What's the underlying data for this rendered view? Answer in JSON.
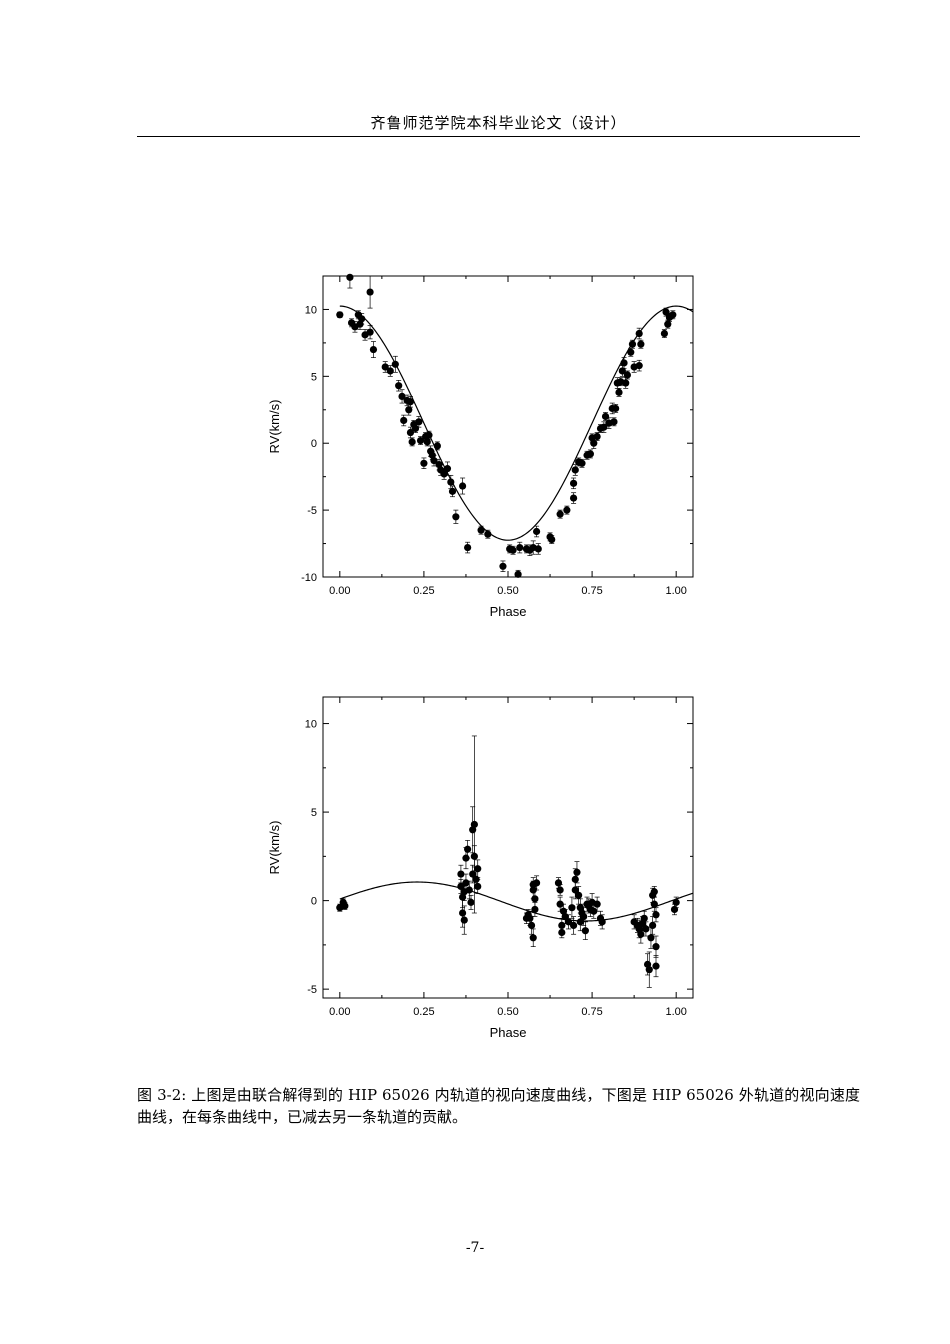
{
  "header": {
    "title": "齐鲁师范学院本科毕业论文（设计）"
  },
  "caption": {
    "text": "图 3-2: 上图是由联合解得到的 HIP 65026 内轨道的视向速度曲线，下图是 HIP 65026 外轨道的视向速度曲线，在每条曲线中，已减去另一条轨道的贡献。"
  },
  "page_number": "-7-",
  "chart_data": [
    {
      "type": "scatter",
      "title": "",
      "xlabel": "Phase",
      "ylabel": "RV(km/s)",
      "xlim": [
        -0.05,
        1.05
      ],
      "ylim": [
        -10,
        12.5
      ],
      "xticks": [
        0.0,
        0.25,
        0.5,
        0.75,
        1.0
      ],
      "xtick_labels": [
        "0.00",
        "0.25",
        "0.50",
        "0.75",
        "1.00"
      ],
      "yticks": [
        -10,
        -5,
        0,
        5,
        10
      ],
      "ytick_labels": [
        "-10",
        "-5",
        "0",
        "5",
        "10"
      ],
      "grid": false,
      "model_curve": {
        "form": "sinusoid",
        "offset": 1.5,
        "amplitude": 8.75,
        "peak_phase": 1.0
      },
      "series": [
        {
          "marker": "filled-circle",
          "points": [
            {
              "x": 0.0,
              "y": 9.6,
              "err": 0.2
            },
            {
              "x": 0.03,
              "y": 12.4,
              "err": 0.8
            },
            {
              "x": 0.035,
              "y": 9.0,
              "err": 0.3
            },
            {
              "x": 0.045,
              "y": 8.7,
              "err": 0.4
            },
            {
              "x": 0.055,
              "y": 9.6,
              "err": 0.3
            },
            {
              "x": 0.06,
              "y": 8.9,
              "err": 0.4
            },
            {
              "x": 0.065,
              "y": 9.3,
              "err": 0.4
            },
            {
              "x": 0.075,
              "y": 8.1,
              "err": 0.4
            },
            {
              "x": 0.09,
              "y": 11.3,
              "err": 1.2
            },
            {
              "x": 0.09,
              "y": 8.3,
              "err": 0.5
            },
            {
              "x": 0.1,
              "y": 7.0,
              "err": 0.6
            },
            {
              "x": 0.135,
              "y": 5.7,
              "err": 0.4
            },
            {
              "x": 0.15,
              "y": 5.4,
              "err": 0.4
            },
            {
              "x": 0.165,
              "y": 5.9,
              "err": 0.6
            },
            {
              "x": 0.175,
              "y": 4.3,
              "err": 0.4
            },
            {
              "x": 0.185,
              "y": 3.5,
              "err": 0.5
            },
            {
              "x": 0.2,
              "y": 3.2,
              "err": 0.4
            },
            {
              "x": 0.205,
              "y": 2.5,
              "err": 0.4
            },
            {
              "x": 0.21,
              "y": 3.1,
              "err": 0.4
            },
            {
              "x": 0.19,
              "y": 1.7,
              "err": 0.4
            },
            {
              "x": 0.21,
              "y": 0.8,
              "err": 0.4
            },
            {
              "x": 0.215,
              "y": 0.1,
              "err": 0.3
            },
            {
              "x": 0.22,
              "y": 1.4,
              "err": 0.3
            },
            {
              "x": 0.225,
              "y": 1.1,
              "err": 0.3
            },
            {
              "x": 0.235,
              "y": 1.6,
              "err": 0.4
            },
            {
              "x": 0.24,
              "y": 0.2,
              "err": 0.3
            },
            {
              "x": 0.25,
              "y": -1.5,
              "err": 0.4
            },
            {
              "x": 0.255,
              "y": 0.5,
              "err": 0.3
            },
            {
              "x": 0.26,
              "y": 0.1,
              "err": 0.3
            },
            {
              "x": 0.265,
              "y": 0.6,
              "err": 0.3
            },
            {
              "x": 0.27,
              "y": -0.6,
              "err": 0.4
            },
            {
              "x": 0.275,
              "y": -0.9,
              "err": 0.3
            },
            {
              "x": 0.28,
              "y": -1.3,
              "err": 0.4
            },
            {
              "x": 0.29,
              "y": -0.2,
              "err": 0.3
            },
            {
              "x": 0.295,
              "y": -1.6,
              "err": 0.4
            },
            {
              "x": 0.3,
              "y": -2.0,
              "err": 0.4
            },
            {
              "x": 0.31,
              "y": -2.3,
              "err": 0.4
            },
            {
              "x": 0.32,
              "y": -1.9,
              "err": 0.5
            },
            {
              "x": 0.33,
              "y": -2.9,
              "err": 0.5
            },
            {
              "x": 0.335,
              "y": -3.6,
              "err": 0.4
            },
            {
              "x": 0.345,
              "y": -5.5,
              "err": 0.5
            },
            {
              "x": 0.365,
              "y": -3.2,
              "err": 0.6
            },
            {
              "x": 0.38,
              "y": -7.8,
              "err": 0.4
            },
            {
              "x": 0.42,
              "y": -6.5,
              "err": 0.3
            },
            {
              "x": 0.44,
              "y": -6.8,
              "err": 0.3
            },
            {
              "x": 0.485,
              "y": -9.2,
              "err": 0.4
            },
            {
              "x": 0.505,
              "y": -7.9,
              "err": 0.3
            },
            {
              "x": 0.515,
              "y": -8.0,
              "err": 0.3
            },
            {
              "x": 0.53,
              "y": -9.8,
              "err": 0.3
            },
            {
              "x": 0.535,
              "y": -7.8,
              "err": 0.4
            },
            {
              "x": 0.555,
              "y": -7.9,
              "err": 0.3
            },
            {
              "x": 0.565,
              "y": -8.0,
              "err": 0.4
            },
            {
              "x": 0.575,
              "y": -7.8,
              "err": 0.5
            },
            {
              "x": 0.585,
              "y": -6.6,
              "err": 0.4
            },
            {
              "x": 0.59,
              "y": -7.9,
              "err": 0.4
            },
            {
              "x": 0.625,
              "y": -7.0,
              "err": 0.3
            },
            {
              "x": 0.63,
              "y": -7.2,
              "err": 0.3
            },
            {
              "x": 0.655,
              "y": -5.3,
              "err": 0.3
            },
            {
              "x": 0.675,
              "y": -5.0,
              "err": 0.3
            },
            {
              "x": 0.695,
              "y": -4.1,
              "err": 0.4
            },
            {
              "x": 0.695,
              "y": -3.0,
              "err": 0.4
            },
            {
              "x": 0.7,
              "y": -2.0,
              "err": 0.4
            },
            {
              "x": 0.71,
              "y": -1.4,
              "err": 0.3
            },
            {
              "x": 0.72,
              "y": -1.5,
              "err": 0.3
            },
            {
              "x": 0.735,
              "y": -0.9,
              "err": 0.3
            },
            {
              "x": 0.745,
              "y": -0.8,
              "err": 0.3
            },
            {
              "x": 0.75,
              "y": 0.4,
              "err": 0.3
            },
            {
              "x": 0.755,
              "y": 0.0,
              "err": 0.4
            },
            {
              "x": 0.765,
              "y": 0.5,
              "err": 0.3
            },
            {
              "x": 0.775,
              "y": 1.1,
              "err": 0.3
            },
            {
              "x": 0.785,
              "y": 1.2,
              "err": 0.4
            },
            {
              "x": 0.79,
              "y": 2.0,
              "err": 0.3
            },
            {
              "x": 0.8,
              "y": 1.5,
              "err": 0.4
            },
            {
              "x": 0.81,
              "y": 2.6,
              "err": 0.4
            },
            {
              "x": 0.815,
              "y": 1.6,
              "err": 0.3
            },
            {
              "x": 0.82,
              "y": 2.6,
              "err": 0.3
            },
            {
              "x": 0.825,
              "y": 4.5,
              "err": 0.4
            },
            {
              "x": 0.83,
              "y": 3.8,
              "err": 0.3
            },
            {
              "x": 0.835,
              "y": 4.6,
              "err": 0.3
            },
            {
              "x": 0.84,
              "y": 5.4,
              "err": 0.4
            },
            {
              "x": 0.845,
              "y": 6.0,
              "err": 0.4
            },
            {
              "x": 0.85,
              "y": 4.5,
              "err": 0.4
            },
            {
              "x": 0.855,
              "y": 5.1,
              "err": 0.3
            },
            {
              "x": 0.865,
              "y": 6.8,
              "err": 0.3
            },
            {
              "x": 0.87,
              "y": 7.4,
              "err": 0.3
            },
            {
              "x": 0.875,
              "y": 5.7,
              "err": 0.4
            },
            {
              "x": 0.89,
              "y": 8.2,
              "err": 0.4
            },
            {
              "x": 0.89,
              "y": 5.8,
              "err": 0.4
            },
            {
              "x": 0.895,
              "y": 7.4,
              "err": 0.3
            },
            {
              "x": 0.965,
              "y": 8.2,
              "err": 0.3
            },
            {
              "x": 0.97,
              "y": 9.8,
              "err": 0.3
            },
            {
              "x": 0.975,
              "y": 8.9,
              "err": 0.3
            },
            {
              "x": 0.98,
              "y": 9.4,
              "err": 0.3
            },
            {
              "x": 0.99,
              "y": 9.6,
              "err": 0.3
            }
          ]
        }
      ]
    },
    {
      "type": "scatter",
      "title": "",
      "xlabel": "Phase",
      "ylabel": "RV(km/s)",
      "xlim": [
        -0.05,
        1.05
      ],
      "ylim": [
        -5.5,
        11.5
      ],
      "xticks": [
        0.0,
        0.25,
        0.5,
        0.75,
        1.0
      ],
      "xtick_labels": [
        "0.00",
        "0.25",
        "0.50",
        "0.75",
        "1.00"
      ],
      "yticks": [
        -5,
        0,
        5,
        10
      ],
      "ytick_labels": [
        "-5",
        "0",
        "5",
        "10"
      ],
      "grid": false,
      "model_curve": {
        "form": "sinusoid",
        "offset": -0.05,
        "amplitude": 1.1,
        "peak_phase": 0.23
      },
      "series": [
        {
          "marker": "filled-circle",
          "points": [
            {
              "x": 0.0,
              "y": -0.4,
              "err": 0.2
            },
            {
              "x": 0.01,
              "y": -0.1,
              "err": 0.2
            },
            {
              "x": 0.015,
              "y": -0.3,
              "err": 0.2
            },
            {
              "x": 0.36,
              "y": 1.5,
              "err": 0.5
            },
            {
              "x": 0.36,
              "y": 0.8,
              "err": 0.4
            },
            {
              "x": 0.365,
              "y": 0.2,
              "err": 0.6
            },
            {
              "x": 0.365,
              "y": -0.7,
              "err": 0.8
            },
            {
              "x": 0.37,
              "y": -1.1,
              "err": 0.8
            },
            {
              "x": 0.37,
              "y": 0.5,
              "err": 0.5
            },
            {
              "x": 0.375,
              "y": 2.4,
              "err": 0.6
            },
            {
              "x": 0.375,
              "y": 1.0,
              "err": 0.5
            },
            {
              "x": 0.38,
              "y": 2.9,
              "err": 0.5
            },
            {
              "x": 0.385,
              "y": 0.6,
              "err": 0.5
            },
            {
              "x": 0.39,
              "y": -0.1,
              "err": 0.4
            },
            {
              "x": 0.395,
              "y": 1.5,
              "err": 0.5
            },
            {
              "x": 0.395,
              "y": 4.0,
              "err": 1.3
            },
            {
              "x": 0.4,
              "y": 4.3,
              "err": 5.0
            },
            {
              "x": 0.4,
              "y": 2.5,
              "err": 0.6
            },
            {
              "x": 0.405,
              "y": 1.2,
              "err": 0.5
            },
            {
              "x": 0.41,
              "y": 0.8,
              "err": 0.4
            },
            {
              "x": 0.41,
              "y": 1.8,
              "err": 0.5
            },
            {
              "x": 0.555,
              "y": -1.0,
              "err": 0.3
            },
            {
              "x": 0.56,
              "y": -0.8,
              "err": 0.3
            },
            {
              "x": 0.565,
              "y": -1.0,
              "err": 0.4
            },
            {
              "x": 0.57,
              "y": -1.4,
              "err": 0.5
            },
            {
              "x": 0.575,
              "y": -2.1,
              "err": 0.5
            },
            {
              "x": 0.575,
              "y": 0.9,
              "err": 0.4
            },
            {
              "x": 0.575,
              "y": 0.6,
              "err": 0.5
            },
            {
              "x": 0.58,
              "y": 0.1,
              "err": 0.6
            },
            {
              "x": 0.58,
              "y": -0.5,
              "err": 0.4
            },
            {
              "x": 0.585,
              "y": 1.0,
              "err": 0.4
            },
            {
              "x": 0.65,
              "y": 1.0,
              "err": 0.3
            },
            {
              "x": 0.655,
              "y": 0.6,
              "err": 0.3
            },
            {
              "x": 0.655,
              "y": -0.2,
              "err": 0.4
            },
            {
              "x": 0.66,
              "y": -1.4,
              "err": 0.4
            },
            {
              "x": 0.66,
              "y": -1.8,
              "err": 0.3
            },
            {
              "x": 0.665,
              "y": -0.6,
              "err": 0.4
            },
            {
              "x": 0.67,
              "y": -0.9,
              "err": 0.4
            },
            {
              "x": 0.68,
              "y": -1.2,
              "err": 0.4
            },
            {
              "x": 0.69,
              "y": -0.4,
              "err": 0.6
            },
            {
              "x": 0.695,
              "y": -1.4,
              "err": 0.5
            },
            {
              "x": 0.7,
              "y": 0.6,
              "err": 0.5
            },
            {
              "x": 0.7,
              "y": 1.2,
              "err": 0.6
            },
            {
              "x": 0.705,
              "y": 1.6,
              "err": 0.6
            },
            {
              "x": 0.71,
              "y": 0.3,
              "err": 0.5
            },
            {
              "x": 0.715,
              "y": -0.4,
              "err": 0.5
            },
            {
              "x": 0.715,
              "y": -1.2,
              "err": 0.5
            },
            {
              "x": 0.72,
              "y": -0.7,
              "err": 0.5
            },
            {
              "x": 0.725,
              "y": -0.9,
              "err": 0.5
            },
            {
              "x": 0.73,
              "y": -1.7,
              "err": 0.5
            },
            {
              "x": 0.735,
              "y": -0.2,
              "err": 0.4
            },
            {
              "x": 0.74,
              "y": -0.3,
              "err": 0.4
            },
            {
              "x": 0.745,
              "y": -0.5,
              "err": 0.4
            },
            {
              "x": 0.75,
              "y": -0.1,
              "err": 0.5
            },
            {
              "x": 0.755,
              "y": -0.6,
              "err": 0.4
            },
            {
              "x": 0.765,
              "y": -0.2,
              "err": 0.4
            },
            {
              "x": 0.775,
              "y": -1.0,
              "err": 0.4
            },
            {
              "x": 0.78,
              "y": -1.2,
              "err": 0.4
            },
            {
              "x": 0.875,
              "y": -1.2,
              "err": 0.4
            },
            {
              "x": 0.885,
              "y": -1.4,
              "err": 0.4
            },
            {
              "x": 0.89,
              "y": -1.6,
              "err": 0.5
            },
            {
              "x": 0.895,
              "y": -1.9,
              "err": 0.5
            },
            {
              "x": 0.9,
              "y": -1.3,
              "err": 0.4
            },
            {
              "x": 0.905,
              "y": -1.0,
              "err": 0.4
            },
            {
              "x": 0.91,
              "y": -1.6,
              "err": 0.4
            },
            {
              "x": 0.915,
              "y": -3.6,
              "err": 0.6
            },
            {
              "x": 0.92,
              "y": -3.9,
              "err": 1.0
            },
            {
              "x": 0.925,
              "y": -2.1,
              "err": 0.6
            },
            {
              "x": 0.93,
              "y": -1.4,
              "err": 0.5
            },
            {
              "x": 0.93,
              "y": 0.3,
              "err": 0.4
            },
            {
              "x": 0.935,
              "y": 0.5,
              "err": 0.3
            },
            {
              "x": 0.935,
              "y": -0.2,
              "err": 0.4
            },
            {
              "x": 0.94,
              "y": -0.8,
              "err": 0.4
            },
            {
              "x": 0.94,
              "y": -2.6,
              "err": 0.6
            },
            {
              "x": 0.94,
              "y": -3.7,
              "err": 0.6
            },
            {
              "x": 0.995,
              "y": -0.5,
              "err": 0.3
            },
            {
              "x": 1.0,
              "y": -0.1,
              "err": 0.3
            }
          ]
        }
      ]
    }
  ]
}
